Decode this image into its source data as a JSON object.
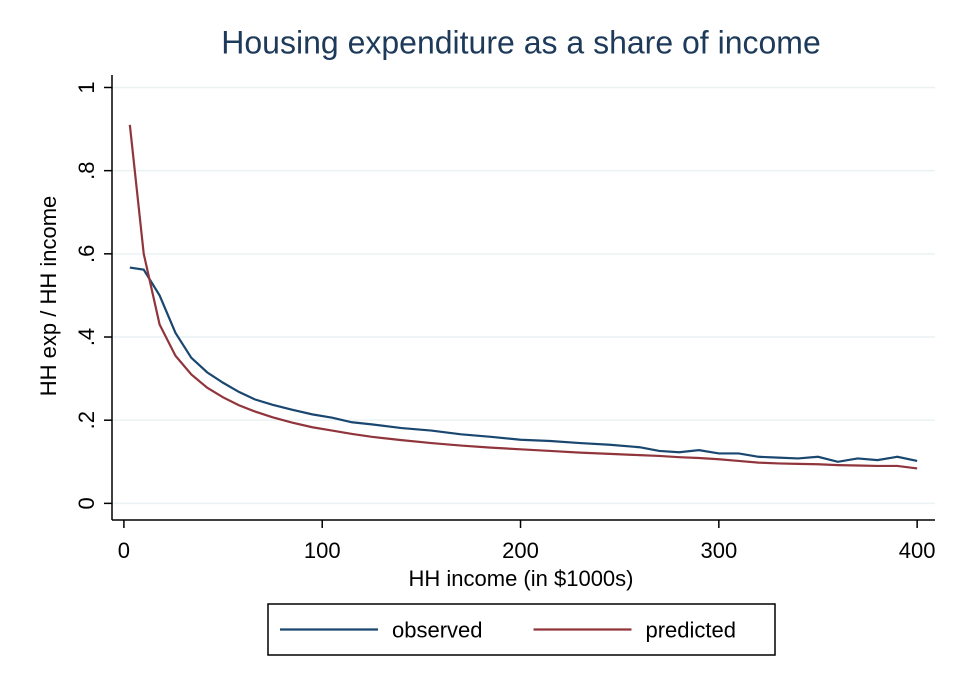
{
  "chart_data": {
    "type": "line",
    "title": "Housing expenditure as a share of income",
    "x_label": "HH income (in $1000s)",
    "y_label": "HH exp / HH income",
    "x": [
      3,
      10,
      18,
      26,
      34,
      42,
      50,
      58,
      66,
      75,
      85,
      95,
      105,
      115,
      125,
      140,
      155,
      170,
      185,
      200,
      215,
      230,
      245,
      260,
      270,
      280,
      290,
      300,
      310,
      320,
      330,
      340,
      350,
      360,
      370,
      380,
      390,
      400
    ],
    "series": [
      {
        "name": "observed",
        "color": "#1a476f",
        "values": [
          0.567,
          0.562,
          0.5,
          0.41,
          0.35,
          0.315,
          0.29,
          0.268,
          0.25,
          0.237,
          0.225,
          0.214,
          0.206,
          0.195,
          0.19,
          0.181,
          0.175,
          0.166,
          0.16,
          0.153,
          0.15,
          0.145,
          0.141,
          0.135,
          0.126,
          0.123,
          0.128,
          0.12,
          0.12,
          0.112,
          0.11,
          0.108,
          0.112,
          0.1,
          0.108,
          0.104,
          0.112,
          0.102
        ]
      },
      {
        "name": "predicted",
        "color": "#90353b",
        "values": [
          0.91,
          0.6,
          0.43,
          0.355,
          0.31,
          0.278,
          0.255,
          0.236,
          0.221,
          0.207,
          0.194,
          0.183,
          0.175,
          0.167,
          0.16,
          0.152,
          0.145,
          0.139,
          0.134,
          0.13,
          0.126,
          0.122,
          0.119,
          0.116,
          0.114,
          0.111,
          0.109,
          0.106,
          0.102,
          0.098,
          0.096,
          0.095,
          0.094,
          0.092,
          0.091,
          0.09,
          0.09,
          0.084
        ]
      }
    ],
    "xlim": [
      -6,
      409
    ],
    "ylim": [
      -0.04,
      1.03
    ],
    "xticks": [
      0,
      100,
      200,
      300,
      400
    ],
    "yticks": [
      0,
      {
        "value": 0.2,
        "label": ".2"
      },
      {
        "value": 0.4,
        "label": ".4"
      },
      {
        "value": 0.6,
        "label": ".6"
      },
      {
        "value": 0.8,
        "label": ".8"
      },
      1
    ],
    "grid": true,
    "legend": "bottom"
  }
}
